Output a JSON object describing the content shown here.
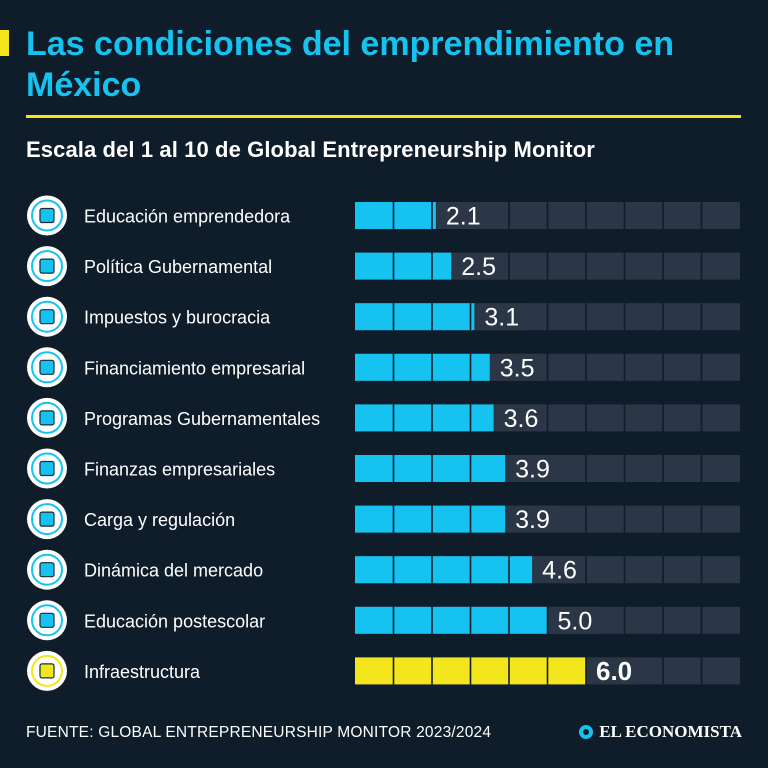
{
  "header": {
    "title": "Las condiciones del emprendimiento en México",
    "subtitle": "Escala del 1 al 10 de Global Entrepreneurship Monitor"
  },
  "footer": {
    "source": "FUENTE: GLOBAL ENTREPRENEURSHIP MONITOR 2023/2024",
    "brand": "EL ECONOMISTA"
  },
  "colors": {
    "background": "#0f1c2a",
    "bar": "#16c3f0",
    "highlight": "#f4e61c",
    "track": "#2b3746"
  },
  "chart_data": {
    "type": "bar",
    "orientation": "horizontal",
    "scale": [
      0,
      10
    ],
    "categories": [
      "Educación emprendedora",
      "Política Gubernamental",
      "Impuestos y burocracia",
      "Financiamiento empresarial",
      "Programas Gubernamentales",
      "Finanzas empresariales",
      "Carga y regulación",
      "Dinámica del mercado",
      "Educación postescolar",
      "Infraestructura"
    ],
    "values": [
      2.1,
      2.5,
      3.1,
      3.5,
      3.6,
      3.9,
      3.9,
      4.6,
      5.0,
      6.0
    ],
    "value_labels": [
      "2.1",
      "2.5",
      "3.1",
      "3.5",
      "3.6",
      "3.9",
      "3.9",
      "4.6",
      "5.0",
      "6.0"
    ],
    "icons": [
      "teacher-chart-icon",
      "government-hand-icon",
      "tax-paperwork-icon",
      "funding-idea-icon",
      "government-program-icon",
      "business-finance-icon",
      "regulation-icon",
      "market-growth-icon",
      "higher-education-icon",
      "infrastructure-icon"
    ],
    "highlight_index": 9
  }
}
